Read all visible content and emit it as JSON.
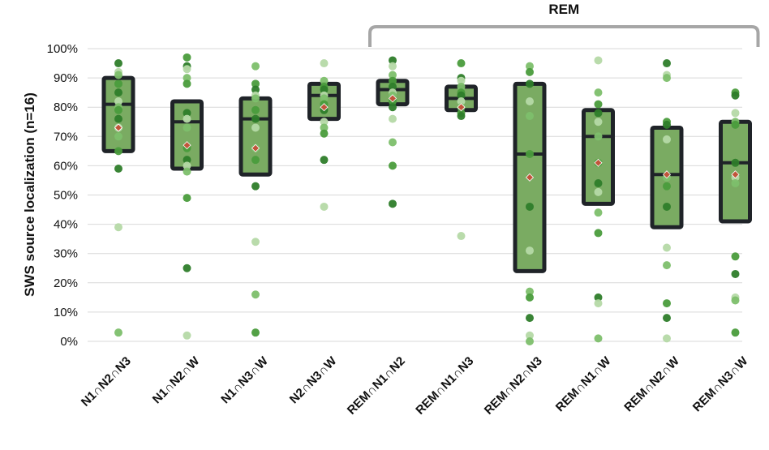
{
  "chart_data": {
    "type": "boxplot",
    "ylabel": "SWS source localization (n=16)",
    "ylim": [
      0,
      100
    ],
    "y_ticks": [
      "0%",
      "10%",
      "20%",
      "30%",
      "40%",
      "50%",
      "60%",
      "70%",
      "80%",
      "90%",
      "100%"
    ],
    "y_tick_values": [
      0,
      10,
      20,
      30,
      40,
      50,
      60,
      70,
      80,
      90,
      100
    ],
    "grid": true,
    "bracket_label": "REM",
    "bracket_categories": [
      "REM∩N1∩N2",
      "REM∩N1∩N3",
      "REM∩N2∩N3",
      "REM∩N1∩W",
      "REM∩N2∩W",
      "REM∩N3∩W"
    ],
    "categories": [
      "N1∩N2∩N3",
      "N1∩N2∩W",
      "N1∩N3∩W",
      "N2∩N3∩W",
      "REM∩N1∩N2",
      "REM∩N1∩N3",
      "REM∩N2∩N3",
      "REM∩N1∩W",
      "REM∩N2∩W",
      "REM∩N3∩W"
    ],
    "boxes": [
      {
        "q1": 65,
        "median": 81,
        "q3": 90,
        "mean": 73
      },
      {
        "q1": 59,
        "median": 75,
        "q3": 82,
        "mean": 67
      },
      {
        "q1": 57,
        "median": 76,
        "q3": 83,
        "mean": 66
      },
      {
        "q1": 76,
        "median": 84,
        "q3": 88,
        "mean": 80
      },
      {
        "q1": 81,
        "median": 86,
        "q3": 89,
        "mean": 83
      },
      {
        "q1": 79,
        "median": 83,
        "q3": 87,
        "mean": 80
      },
      {
        "q1": 24,
        "median": 64,
        "q3": 88,
        "mean": 56
      },
      {
        "q1": 47,
        "median": 70,
        "q3": 79,
        "mean": 61
      },
      {
        "q1": 39,
        "median": 57,
        "q3": 73,
        "mean": 57
      },
      {
        "q1": 41,
        "median": 61,
        "q3": 75,
        "mean": 57
      }
    ],
    "points": [
      [
        95,
        92,
        91,
        88,
        85,
        82,
        80,
        79,
        76,
        73,
        70,
        65,
        59,
        39,
        3
      ],
      [
        97,
        94,
        93,
        90,
        88,
        78,
        76,
        73,
        66,
        62,
        60,
        58,
        49,
        25,
        2
      ],
      [
        94,
        88,
        86,
        84,
        83,
        79,
        76,
        73,
        66,
        62,
        53,
        34,
        16,
        3
      ],
      [
        95,
        89,
        87,
        86,
        84,
        83,
        81,
        79,
        75,
        73,
        71,
        62,
        46
      ],
      [
        96,
        94,
        91,
        89,
        87,
        85,
        84,
        82,
        80,
        76,
        68,
        60,
        47
      ],
      [
        95,
        90,
        89,
        87,
        85,
        84,
        82,
        80,
        78,
        77,
        36
      ],
      [
        94,
        92,
        88,
        82,
        77,
        64,
        46,
        31,
        17,
        15,
        8,
        2,
        0
      ],
      [
        96,
        85,
        81,
        78,
        75,
        70,
        61,
        54,
        51,
        44,
        37,
        15,
        13,
        1
      ],
      [
        95,
        91,
        90,
        75,
        74,
        69,
        56,
        53,
        46,
        32,
        26,
        13,
        8,
        1
      ],
      [
        85,
        84,
        78,
        75,
        74,
        61,
        56,
        54,
        29,
        23,
        15,
        14,
        3
      ]
    ],
    "colors": {
      "box_fill": "#7aab62",
      "box_stroke": "#1f2328",
      "mean_marker": "#c0553a",
      "point_palette": [
        "#2e7d2a",
        "#4a9c3c",
        "#7dbf6c",
        "#b5d9a6"
      ],
      "grid": "#d9d9d9",
      "bracket": "#a6a6a6"
    }
  }
}
